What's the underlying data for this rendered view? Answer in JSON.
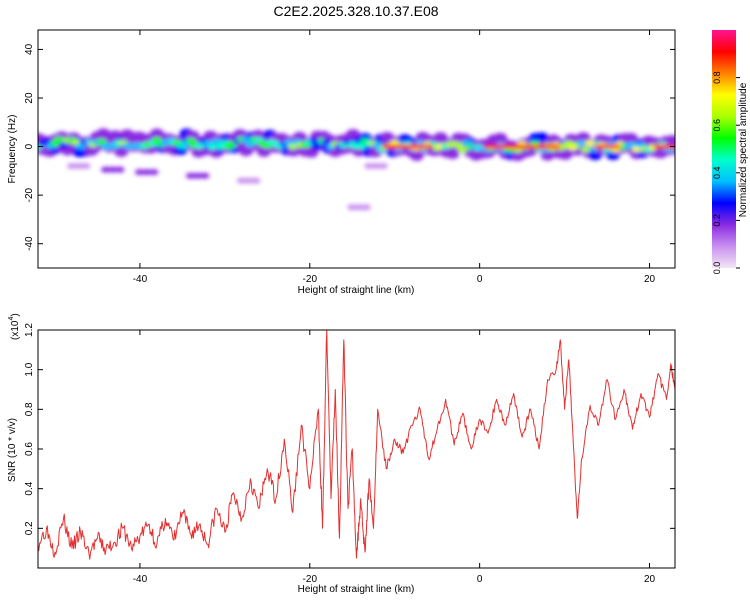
{
  "title": "C2E2.2025.328.10.37.E08",
  "chart_data": [
    {
      "type": "heatmap",
      "xlabel": "Height of straight line (km)",
      "ylabel": "Frequency (Hz)",
      "xlim": [
        -52,
        23
      ],
      "ylim": [
        -50,
        48
      ],
      "xticks": [
        -40,
        -20,
        0,
        20
      ],
      "xtick_labels": [
        "-40",
        "-20",
        "0",
        "20"
      ],
      "yticks": [
        -40,
        -20,
        0,
        20,
        40
      ],
      "ytick_labels": [
        "-40",
        "-20",
        "0",
        "20",
        "40"
      ],
      "colorbar": {
        "label": "Normalized spectral amplitude",
        "range": [
          0,
          1
        ],
        "ticks": [
          0,
          0.2,
          0.4,
          0.6,
          0.8
        ],
        "tick_labels": [
          "0.0",
          "0.2",
          "0.4",
          "0.6",
          "0.8"
        ],
        "colors": [
          "#f2e6f5",
          "#c98ff0",
          "#8a2be2",
          "#0000ff",
          "#00bfff",
          "#00ffcc",
          "#00ff00",
          "#aaff00",
          "#ffff00",
          "#ff8000",
          "#ff0000",
          "#ff1493"
        ]
      },
      "bands": [
        {
          "x_start": -52,
          "x_end": -13,
          "freq_center": 1.5,
          "amplitude": 0.45
        },
        {
          "x_start": -13,
          "x_end": 23,
          "freq_center": 0,
          "amplitude": 0.55
        },
        {
          "x_start": -11,
          "x_end": -6,
          "freq_center": 0,
          "amplitude": 0.95
        },
        {
          "x_start": 1,
          "x_end": 6,
          "freq_center": 0,
          "amplitude": 0.95
        },
        {
          "x_start": 7,
          "x_end": 9,
          "freq_center": 0,
          "amplitude": 0.9
        },
        {
          "x_start": 14,
          "x_end": 16,
          "freq_center": 0,
          "amplitude": 0.9
        },
        {
          "x_start": 21,
          "x_end": 23,
          "freq_center": 0,
          "amplitude": 0.9
        }
      ],
      "spots": [
        {
          "x": -44,
          "freq": -9.5,
          "amplitude": 0.2
        },
        {
          "x": -40,
          "freq": -10.5,
          "amplitude": 0.15
        },
        {
          "x": -34,
          "freq": -12,
          "amplitude": 0.15
        },
        {
          "x": -48,
          "freq": -8,
          "amplitude": 0.05
        },
        {
          "x": -28,
          "freq": -14,
          "amplitude": 0.05
        },
        {
          "x": -15,
          "freq": -25,
          "amplitude": 0.08
        },
        {
          "x": -13,
          "freq": -8,
          "amplitude": 0.05
        }
      ]
    },
    {
      "type": "line",
      "xlabel": "Height of straight line (km)",
      "ylabel": "SNR (10 * v/v)",
      "multiplier_label": "(x10",
      "multiplier_exp": "4",
      "multiplier_close": ")",
      "xlim": [
        -52,
        23
      ],
      "ylim": [
        0,
        1.2
      ],
      "xticks": [
        -40,
        -20,
        0,
        20
      ],
      "xtick_labels": [
        "-40",
        "-20",
        "0",
        "20"
      ],
      "yticks": [
        0.2,
        0.4,
        0.6,
        0.8,
        1.0,
        1.2
      ],
      "ytick_labels": [
        "0.2",
        "0.4",
        "0.6",
        "0.8",
        "1.0",
        "1.2"
      ],
      "color": "#e53030",
      "series": [
        {
          "name": "SNR",
          "x": [
            -52,
            -51,
            -50,
            -49,
            -48,
            -47,
            -46,
            -45,
            -44,
            -43,
            -42,
            -41,
            -40,
            -39,
            -38,
            -37,
            -36,
            -35,
            -34,
            -33,
            -32,
            -31,
            -30,
            -29,
            -28,
            -27,
            -26,
            -25,
            -24,
            -23,
            -22,
            -21,
            -20,
            -19,
            -18.5,
            -18,
            -17.5,
            -17,
            -16.5,
            -16,
            -15.5,
            -15,
            -14.5,
            -14,
            -13.5,
            -13,
            -12.5,
            -12,
            -11,
            -10,
            -9,
            -8,
            -7,
            -6,
            -5,
            -4,
            -3,
            -2,
            -1,
            0,
            1,
            2,
            3,
            4,
            5,
            6,
            7,
            8,
            9,
            9.5,
            10,
            10.5,
            11,
            11.5,
            12,
            13,
            14,
            15,
            16,
            17,
            18,
            19,
            20,
            21,
            22,
            22.5,
            23
          ],
          "y": [
            0.12,
            0.2,
            0.08,
            0.25,
            0.1,
            0.18,
            0.07,
            0.15,
            0.09,
            0.13,
            0.2,
            0.1,
            0.16,
            0.22,
            0.12,
            0.25,
            0.14,
            0.28,
            0.17,
            0.22,
            0.12,
            0.3,
            0.18,
            0.38,
            0.25,
            0.45,
            0.3,
            0.5,
            0.35,
            0.65,
            0.28,
            0.72,
            0.4,
            0.8,
            0.2,
            1.2,
            0.35,
            0.9,
            0.15,
            1.15,
            0.3,
            0.6,
            0.05,
            0.35,
            0.08,
            0.45,
            0.2,
            0.8,
            0.5,
            0.65,
            0.58,
            0.72,
            0.8,
            0.55,
            0.7,
            0.85,
            0.62,
            0.78,
            0.6,
            0.75,
            0.68,
            0.85,
            0.72,
            0.88,
            0.66,
            0.8,
            0.6,
            0.95,
            1.0,
            1.15,
            0.8,
            1.05,
            0.65,
            0.25,
            0.55,
            0.82,
            0.72,
            0.95,
            0.75,
            0.9,
            0.7,
            0.88,
            0.76,
            0.98,
            0.85,
            1.03,
            0.9
          ]
        }
      ]
    }
  ]
}
